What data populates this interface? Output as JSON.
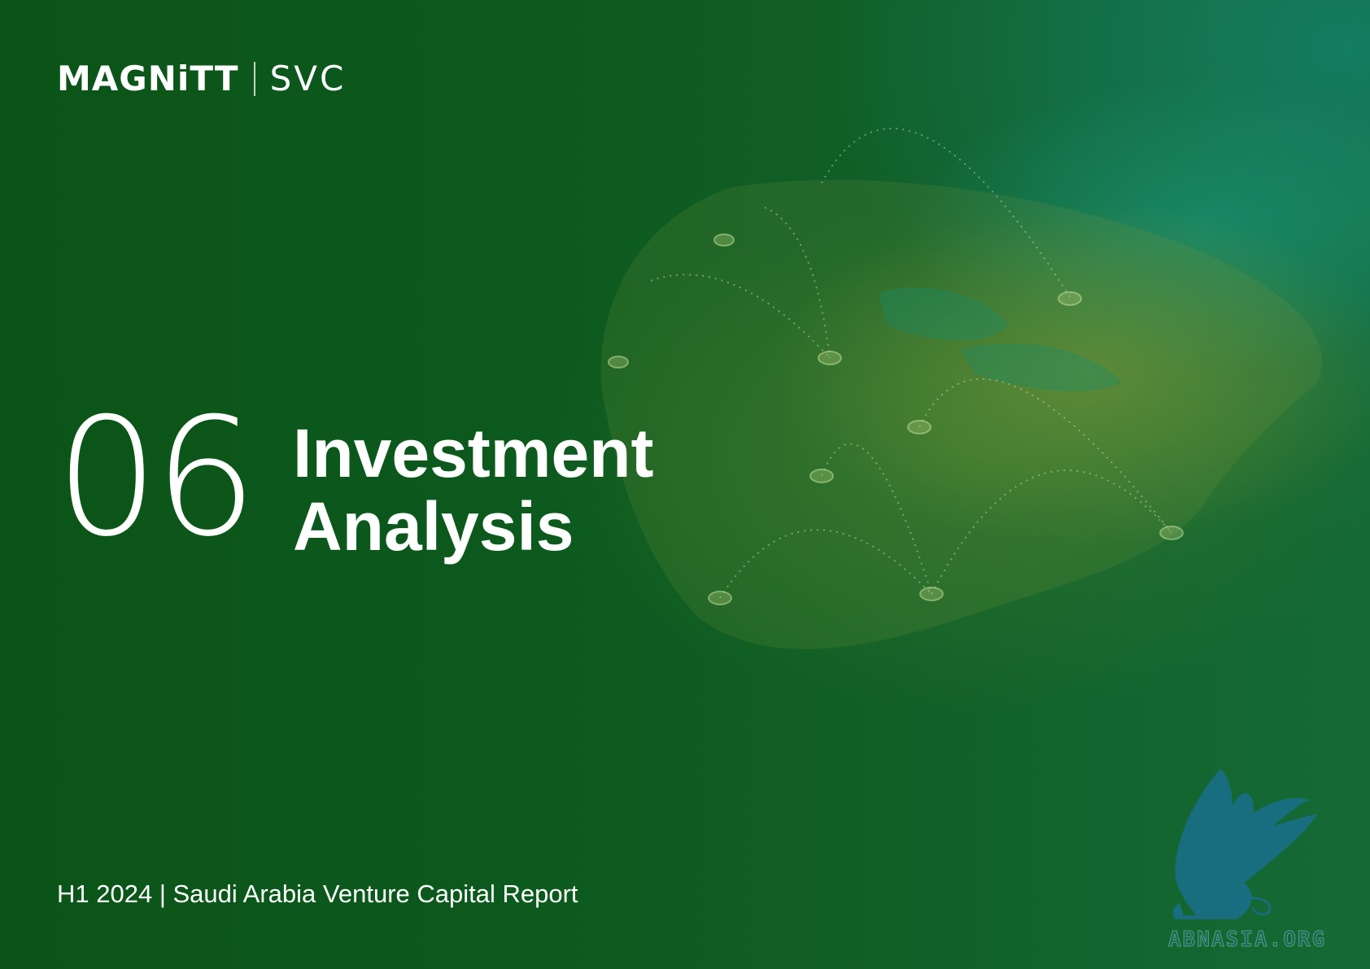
{
  "header": {
    "brand_primary": "MAGNiTT",
    "brand_secondary": "SVC"
  },
  "section": {
    "number": "06",
    "title_line1": "Investment",
    "title_line2": "Analysis"
  },
  "footer": {
    "report_label": "H1 2024 | Saudi Arabia Venture Capital Report"
  },
  "watermark": {
    "text": "ABNASIA.ORG",
    "icon": "griffin-icon"
  },
  "colors": {
    "background": "#0d5a1f",
    "text": "#ffffff",
    "watermark": "#1f7a8c"
  }
}
